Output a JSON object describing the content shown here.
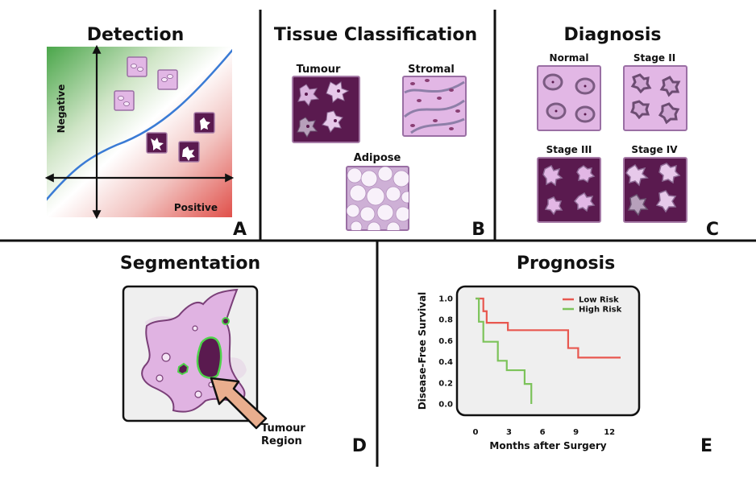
{
  "panels": {
    "a": {
      "title": "Detection",
      "letter": "A",
      "negative": "Negative",
      "positive": "Positive"
    },
    "b": {
      "title": "Tissue Classification",
      "letter": "B",
      "tumour": "Tumour",
      "stromal": "Stromal",
      "adipose": "Adipose"
    },
    "c": {
      "title": "Diagnosis",
      "letter": "C",
      "normal": "Normal",
      "stage2": "Stage II",
      "stage3": "Stage III",
      "stage4": "Stage IV"
    },
    "d": {
      "title": "Segmentation",
      "letter": "D",
      "callout_line1": "Tumour",
      "callout_line2": "Region"
    },
    "e": {
      "title": "Prognosis",
      "letter": "E"
    }
  },
  "colors": {
    "tissue_light": "#e2b7e5",
    "tissue_dark": "#5a1a4f",
    "low_risk": "#e8574f",
    "high_risk": "#7cc35a",
    "boundary": "#3a7bd5"
  },
  "chart_data": {
    "type": "line",
    "subtype": "step",
    "title": "",
    "xlabel": "Months after Surgery",
    "ylabel": "Disease-Free Survival",
    "xlim": [
      0,
      13
    ],
    "ylim": [
      0,
      1.0
    ],
    "x_ticks": [
      0,
      3,
      6,
      9,
      12
    ],
    "y_ticks": [
      0.0,
      0.2,
      0.4,
      0.6,
      0.8,
      1.0
    ],
    "x_tick_labels": [
      "0",
      "3",
      "6",
      "9",
      "12"
    ],
    "y_tick_labels": [
      "0.0",
      "0.2",
      "0.4",
      "0.6",
      "0.8",
      "1.0"
    ],
    "grid": false,
    "legend": "top-right",
    "series": [
      {
        "name": "Low Risk",
        "color": "#e8574f",
        "x": [
          0,
          0.7,
          1.0,
          1.4,
          2.9,
          8.3,
          9.2,
          13
        ],
        "y": [
          1.0,
          0.88,
          0.77,
          0.77,
          0.7,
          0.53,
          0.44,
          0.44
        ]
      },
      {
        "name": "High Risk",
        "color": "#7cc35a",
        "x": [
          0,
          0.3,
          0.7,
          2.0,
          2.8,
          4.4,
          5.0
        ],
        "y": [
          1.0,
          0.78,
          0.59,
          0.41,
          0.32,
          0.19,
          0.0
        ]
      }
    ]
  }
}
